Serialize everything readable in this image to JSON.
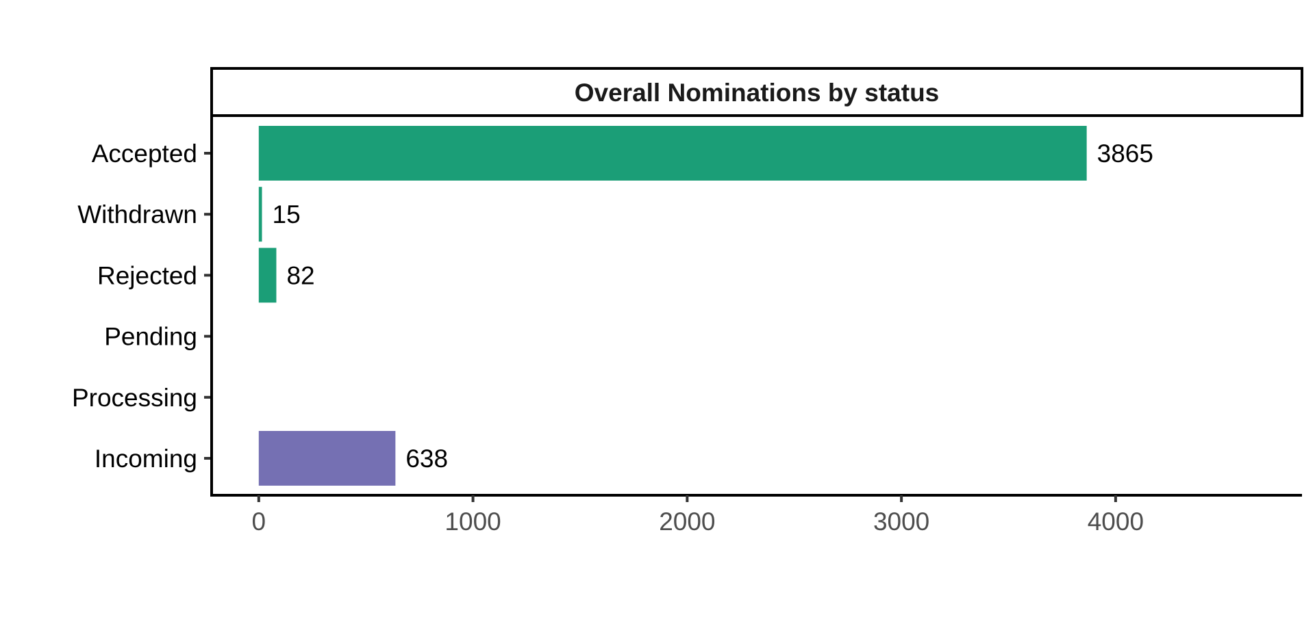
{
  "chart_data": {
    "type": "bar",
    "orientation": "horizontal",
    "title": "Overall Nominations by status",
    "categories": [
      "Accepted",
      "Withdrawn",
      "Rejected",
      "Pending",
      "Processing",
      "Incoming"
    ],
    "values": [
      3865,
      15,
      82,
      0,
      0,
      638
    ],
    "data_labels": [
      "3865",
      "15",
      "82",
      "",
      "",
      "638"
    ],
    "bar_colors": [
      "#1b9e77",
      "#1b9e77",
      "#1b9e77",
      "#1b9e77",
      "#1b9e77",
      "#7570b3"
    ],
    "xlim": [
      -220,
      4870
    ],
    "x_ticks": [
      0,
      1000,
      2000,
      3000,
      4000
    ],
    "x_tick_labels": [
      "0",
      "1000",
      "2000",
      "3000",
      "4000"
    ],
    "xlabel": "",
    "ylabel": "",
    "grid": false,
    "legend": "none"
  }
}
